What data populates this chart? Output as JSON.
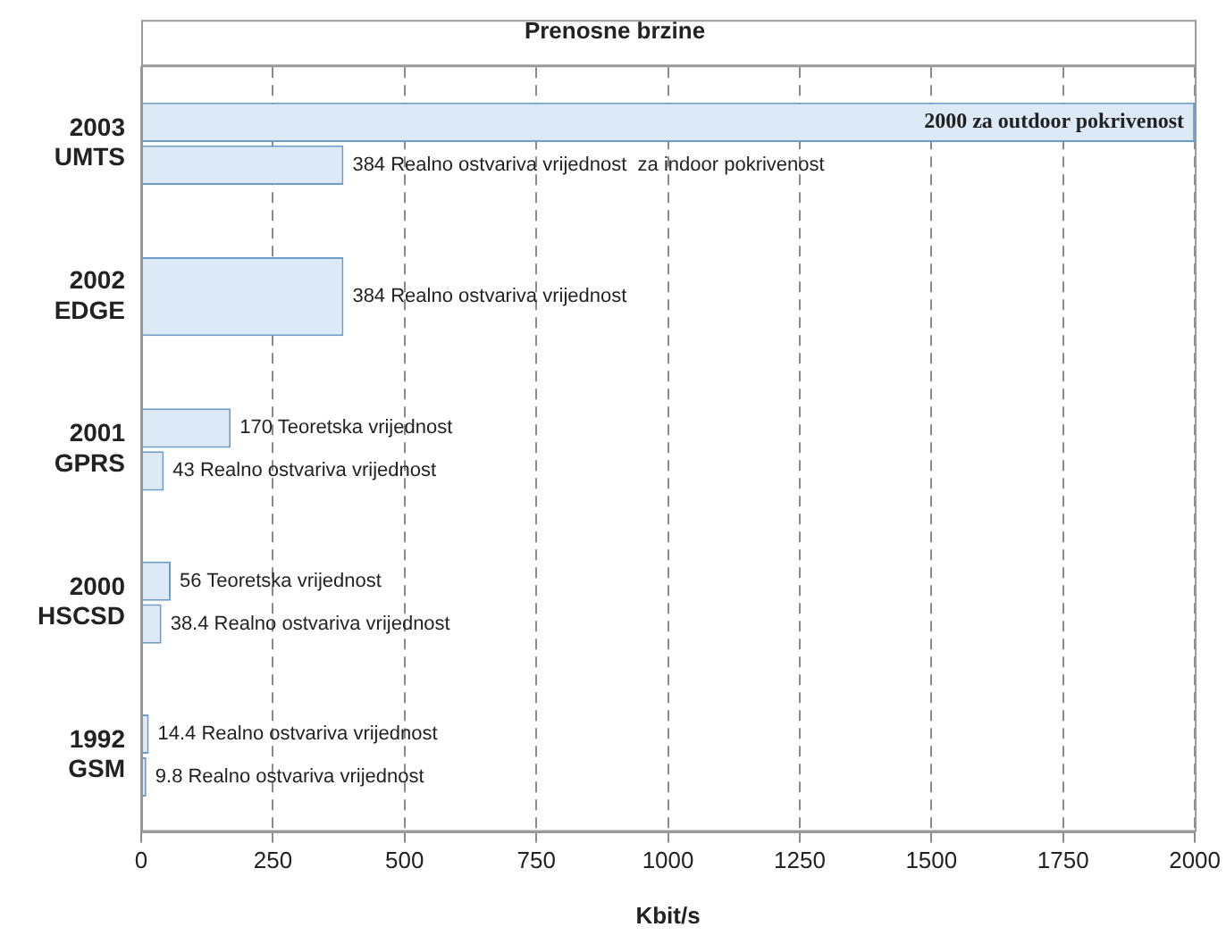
{
  "chart_data": {
    "type": "bar",
    "orientation": "horizontal",
    "title": "Prenosne brzine",
    "xlabel": "Kbit/s",
    "categories": [
      "2003 UMTS",
      "2002 EDGE",
      "2001 GPRS",
      "2000 HSCSD",
      "1992 GSM"
    ],
    "series": [
      {
        "color": "#dce9f7",
        "values": [
          2000,
          384,
          170,
          56,
          14.4
        ],
        "value_labels": [
          "2000 za outdoor pokrivenost",
          "384 Realno ostvariva vrijednost",
          "170 Teoretska vrijednost",
          "56 Teoretska vrijednost",
          "14.4 Realno ostvariva vrijednost"
        ]
      },
      {
        "color": "#dce9f7",
        "values": [
          384,
          null,
          43,
          38.4,
          9.8
        ],
        "value_labels": [
          "384 Realno ostvariva vrijednost  za indoor pokrivenost",
          null,
          "43 Realno ostvariva vrijednost",
          "38.4 Realno ostvariva vrijednost",
          "9.8 Realno ostvariva vrijednost"
        ]
      }
    ],
    "xlim": [
      0,
      2000
    ],
    "xticks": [
      0,
      250,
      500,
      750,
      1000,
      1250,
      1500,
      1750,
      2000
    ],
    "grid": "x"
  }
}
